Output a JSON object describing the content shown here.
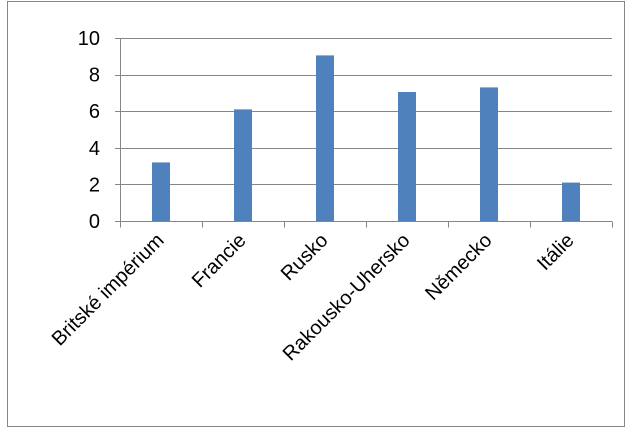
{
  "chart_data": {
    "type": "bar",
    "categories": [
      "Britské impérium",
      "Francie",
      "Rusko",
      "Rakousko-Uhersko",
      "Německo",
      "Itálie"
    ],
    "series": [
      {
        "values": [
          3.2,
          6.1,
          9.05,
          7.05,
          7.3,
          2.1
        ]
      }
    ],
    "yticks": [
      "0",
      "2",
      "4",
      "6",
      "8",
      "10"
    ],
    "ylim": [
      0,
      10
    ],
    "grid": true,
    "legend": "none",
    "title": "",
    "xlabel": "",
    "ylabel": ""
  },
  "colors": {
    "bar": "#4f81bd",
    "gridline": "#868686",
    "axis": "#868686",
    "frame": "#868686"
  }
}
